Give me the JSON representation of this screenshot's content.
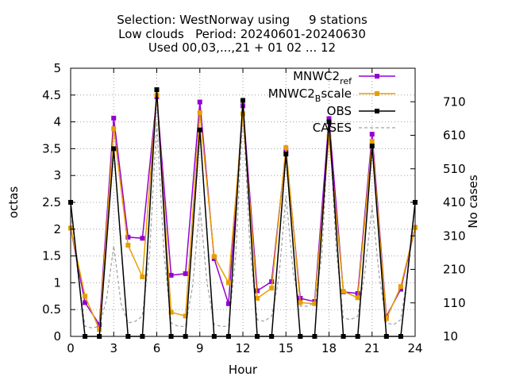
{
  "chart_data": {
    "type": "line",
    "title_lines": [
      "Selection: WestNorway using     9 stations",
      "Low clouds   Period: 20240601-20240630",
      "Used 00,03,...,21 + 01 02 ... 12"
    ],
    "xlabel": "Hour",
    "ylabel": "octas",
    "y2label": "No cases",
    "xlim": [
      0,
      24
    ],
    "ylim": [
      0,
      5
    ],
    "y2lim": [
      10,
      810
    ],
    "x_ticks": [
      0,
      3,
      6,
      9,
      12,
      15,
      18,
      21,
      24
    ],
    "y_ticks": [
      "0",
      "0.5",
      "1",
      "1.5",
      "2",
      "2.5",
      "3",
      "3.5",
      "4",
      "4.5",
      "5"
    ],
    "y2_ticks": [
      10,
      110,
      210,
      310,
      410,
      510,
      610,
      710
    ],
    "grid": true,
    "legend_position": "top-right",
    "x": [
      0,
      1,
      2,
      3,
      4,
      5,
      6,
      7,
      8,
      9,
      10,
      11,
      12,
      13,
      14,
      15,
      16,
      17,
      18,
      19,
      20,
      21,
      22,
      23,
      24
    ],
    "series": [
      {
        "name": "MNWC2_ref",
        "legend_main": "MNWC2",
        "legend_sub": "ref",
        "color": "#9400d3",
        "axis": "left",
        "style": "line-points",
        "values": [
          2.02,
          0.63,
          0.22,
          4.07,
          1.85,
          1.83,
          4.47,
          1.14,
          1.17,
          4.37,
          1.45,
          0.61,
          4.3,
          0.85,
          1.02,
          3.47,
          0.71,
          0.65,
          4.06,
          0.83,
          0.8,
          3.77,
          0.37,
          0.88,
          2.03
        ]
      },
      {
        "name": "MNWC2_Bscale",
        "legend_main": "MNWC2",
        "legend_sub": "B",
        "legend_rest": "scale",
        "color": "#e69f00",
        "axis": "left",
        "style": "line-points",
        "values": [
          2.02,
          0.75,
          0.13,
          3.87,
          1.7,
          1.11,
          4.5,
          0.45,
          0.38,
          4.17,
          1.49,
          1.0,
          4.15,
          0.71,
          0.9,
          3.52,
          0.63,
          0.61,
          3.72,
          0.84,
          0.72,
          3.64,
          0.33,
          0.93,
          2.03
        ]
      },
      {
        "name": "OBS",
        "color": "#000000",
        "axis": "left",
        "style": "line-points",
        "values": [
          2.5,
          0.0,
          0.0,
          3.5,
          0.0,
          0.0,
          4.6,
          0.0,
          0.0,
          3.85,
          0.0,
          0.0,
          4.4,
          0.0,
          0.0,
          3.4,
          0.0,
          0.0,
          4.0,
          0.0,
          0.0,
          3.55,
          0.0,
          0.0,
          2.5
        ]
      },
      {
        "name": "CASES",
        "color": "#a0a0a0",
        "axis": "right",
        "style": "dashed",
        "x": [
          0,
          0.5,
          1,
          1.5,
          2,
          2.5,
          3,
          3.5,
          4,
          4.5,
          5,
          5.5,
          6,
          6.5,
          7,
          7.5,
          8,
          8.5,
          9,
          9.5,
          10,
          10.5,
          11,
          11.5,
          12,
          12.5,
          13,
          13.5,
          14,
          14.5,
          15,
          15.5,
          16,
          16.5,
          17,
          17.5,
          18,
          18.5,
          19,
          19.5,
          20,
          20.5,
          21,
          21.5,
          22,
          22.5,
          23,
          23.5,
          24
        ],
        "values": [
          390,
          200,
          40,
          35,
          40,
          120,
          280,
          110,
          50,
          55,
          70,
          260,
          650,
          260,
          50,
          40,
          40,
          160,
          400,
          170,
          45,
          40,
          40,
          250,
          680,
          270,
          60,
          55,
          70,
          180,
          430,
          200,
          100,
          100,
          110,
          250,
          670,
          270,
          65,
          60,
          70,
          200,
          400,
          190,
          50,
          45,
          60,
          200,
          400
        ]
      }
    ]
  }
}
